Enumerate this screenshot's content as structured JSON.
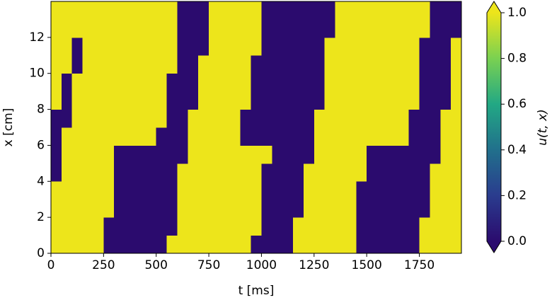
{
  "chart_data": {
    "type": "heatmap",
    "x_label": "t [ms]",
    "y_label": "x [cm]",
    "colorbar_label": "u(t, x)",
    "xlim": [
      0,
      1950
    ],
    "ylim": [
      0,
      14
    ],
    "xticks": [
      0,
      250,
      500,
      750,
      1000,
      1250,
      1500,
      1750
    ],
    "yticks": [
      0,
      2,
      4,
      6,
      8,
      10,
      12
    ],
    "clim": [
      0,
      1
    ],
    "cticks": [
      {
        "value": 0,
        "label": "0.0"
      },
      {
        "value": 0.2,
        "label": "0.2"
      },
      {
        "value": 0.4,
        "label": "0.4"
      },
      {
        "value": 0.6,
        "label": "0.6"
      },
      {
        "value": 0.8,
        "label": "0.8"
      },
      {
        "value": 1,
        "label": "1.0"
      }
    ],
    "colormap": [
      "#2b0b6e",
      "#2a3c8e",
      "#21708c",
      "#22a884",
      "#7ad151",
      "#ede51b"
    ],
    "z": [
      [
        1,
        1,
        1,
        1,
        1,
        0,
        0,
        0,
        0,
        0,
        0,
        1,
        1,
        1,
        1,
        1,
        1,
        1,
        1,
        0,
        0,
        0,
        0,
        1,
        1,
        1,
        1,
        1,
        1,
        0,
        0,
        0,
        0,
        0,
        0,
        1,
        1,
        1,
        1
      ],
      [
        1,
        1,
        1,
        1,
        1,
        0,
        0,
        0,
        0,
        0,
        0,
        0,
        1,
        1,
        1,
        1,
        1,
        1,
        1,
        1,
        0,
        0,
        0,
        1,
        1,
        1,
        1,
        1,
        1,
        0,
        0,
        0,
        0,
        0,
        0,
        1,
        1,
        1,
        1
      ],
      [
        1,
        1,
        1,
        1,
        1,
        1,
        0,
        0,
        0,
        0,
        0,
        0,
        1,
        1,
        1,
        1,
        1,
        1,
        1,
        1,
        0,
        0,
        0,
        0,
        1,
        1,
        1,
        1,
        1,
        0,
        0,
        0,
        0,
        0,
        0,
        0,
        1,
        1,
        1
      ],
      [
        1,
        1,
        1,
        1,
        1,
        1,
        0,
        0,
        0,
        0,
        0,
        0,
        1,
        1,
        1,
        1,
        1,
        1,
        1,
        1,
        0,
        0,
        0,
        0,
        1,
        1,
        1,
        1,
        1,
        0,
        0,
        0,
        0,
        0,
        0,
        0,
        1,
        1,
        1
      ],
      [
        0,
        1,
        1,
        1,
        1,
        1,
        0,
        0,
        0,
        0,
        0,
        0,
        1,
        1,
        1,
        1,
        1,
        1,
        1,
        1,
        0,
        0,
        0,
        0,
        1,
        1,
        1,
        1,
        1,
        1,
        0,
        0,
        0,
        0,
        0,
        0,
        1,
        1,
        1
      ],
      [
        0,
        1,
        1,
        1,
        1,
        1,
        0,
        0,
        0,
        0,
        0,
        0,
        0,
        1,
        1,
        1,
        1,
        1,
        1,
        1,
        1,
        0,
        0,
        0,
        0,
        1,
        1,
        1,
        1,
        1,
        0,
        0,
        0,
        0,
        0,
        0,
        0,
        1,
        1
      ],
      [
        0,
        1,
        1,
        1,
        1,
        1,
        1,
        1,
        1,
        1,
        0,
        0,
        0,
        1,
        1,
        1,
        1,
        1,
        0,
        0,
        0,
        0,
        0,
        0,
        0,
        1,
        1,
        1,
        1,
        1,
        1,
        1,
        1,
        1,
        0,
        0,
        0,
        1,
        1
      ],
      [
        0,
        0,
        1,
        1,
        1,
        1,
        1,
        1,
        1,
        1,
        1,
        0,
        0,
        1,
        1,
        1,
        1,
        1,
        0,
        0,
        0,
        0,
        0,
        0,
        0,
        1,
        1,
        1,
        1,
        1,
        1,
        1,
        1,
        1,
        0,
        0,
        0,
        1,
        1
      ],
      [
        1,
        0,
        1,
        1,
        1,
        1,
        1,
        1,
        1,
        1,
        1,
        0,
        0,
        0,
        1,
        1,
        1,
        1,
        1,
        0,
        0,
        0,
        0,
        0,
        0,
        0,
        1,
        1,
        1,
        1,
        1,
        1,
        1,
        1,
        1,
        0,
        0,
        0,
        1
      ],
      [
        1,
        0,
        1,
        1,
        1,
        1,
        1,
        1,
        1,
        1,
        1,
        0,
        0,
        0,
        1,
        1,
        1,
        1,
        1,
        0,
        0,
        0,
        0,
        0,
        0,
        0,
        1,
        1,
        1,
        1,
        1,
        1,
        1,
        1,
        1,
        0,
        0,
        0,
        1
      ],
      [
        1,
        1,
        0,
        1,
        1,
        1,
        1,
        1,
        1,
        1,
        1,
        1,
        0,
        0,
        1,
        1,
        1,
        1,
        1,
        0,
        0,
        0,
        0,
        0,
        0,
        0,
        1,
        1,
        1,
        1,
        1,
        1,
        1,
        1,
        1,
        0,
        0,
        0,
        1
      ],
      [
        1,
        1,
        0,
        1,
        1,
        1,
        1,
        1,
        1,
        1,
        1,
        1,
        0,
        0,
        0,
        1,
        1,
        1,
        1,
        1,
        0,
        0,
        0,
        0,
        0,
        0,
        1,
        1,
        1,
        1,
        1,
        1,
        1,
        1,
        1,
        0,
        0,
        0,
        1
      ],
      [
        1,
        1,
        1,
        1,
        1,
        1,
        1,
        1,
        1,
        1,
        1,
        1,
        0,
        0,
        0,
        1,
        1,
        1,
        1,
        1,
        0,
        0,
        0,
        0,
        0,
        0,
        0,
        1,
        1,
        1,
        1,
        1,
        1,
        1,
        1,
        1,
        0,
        0,
        0
      ],
      [
        1,
        1,
        1,
        1,
        1,
        1,
        1,
        1,
        1,
        1,
        1,
        1,
        0,
        0,
        0,
        1,
        1,
        1,
        1,
        1,
        0,
        0,
        0,
        0,
        0,
        0,
        0,
        1,
        1,
        1,
        1,
        1,
        1,
        1,
        1,
        1,
        0,
        0,
        0
      ]
    ]
  }
}
